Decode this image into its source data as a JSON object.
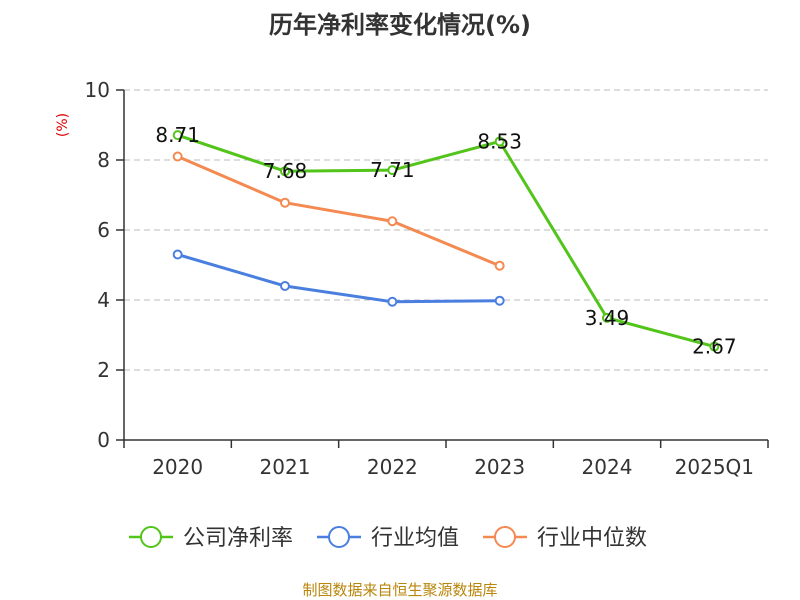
{
  "chart_data": {
    "type": "line",
    "title": "历年净利率变化情况(%)",
    "ylabel": "(%)",
    "xlabel": "",
    "categories": [
      "2020",
      "2021",
      "2022",
      "2023",
      "2024",
      "2025Q1"
    ],
    "ylim": [
      0,
      10
    ],
    "yticks": [
      0,
      2,
      4,
      6,
      8,
      10
    ],
    "grid": true,
    "legend_position": "bottom",
    "series": [
      {
        "name": "公司净利率",
        "color": "#52c41a",
        "values": [
          8.71,
          7.68,
          7.71,
          8.53,
          3.49,
          2.67
        ],
        "labels": [
          "8.71",
          "7.68",
          "7.71",
          "8.53",
          "3.49",
          "2.67"
        ],
        "show_labels": true
      },
      {
        "name": "行业均值",
        "color": "#4a7fe0",
        "values": [
          5.3,
          4.4,
          3.95,
          3.98,
          null,
          null
        ],
        "show_labels": false
      },
      {
        "name": "行业中位数",
        "color": "#f48a52",
        "values": [
          8.1,
          6.78,
          6.25,
          4.98,
          null,
          null
        ],
        "show_labels": false
      }
    ]
  },
  "source": "制图数据来自恒生聚源数据库"
}
